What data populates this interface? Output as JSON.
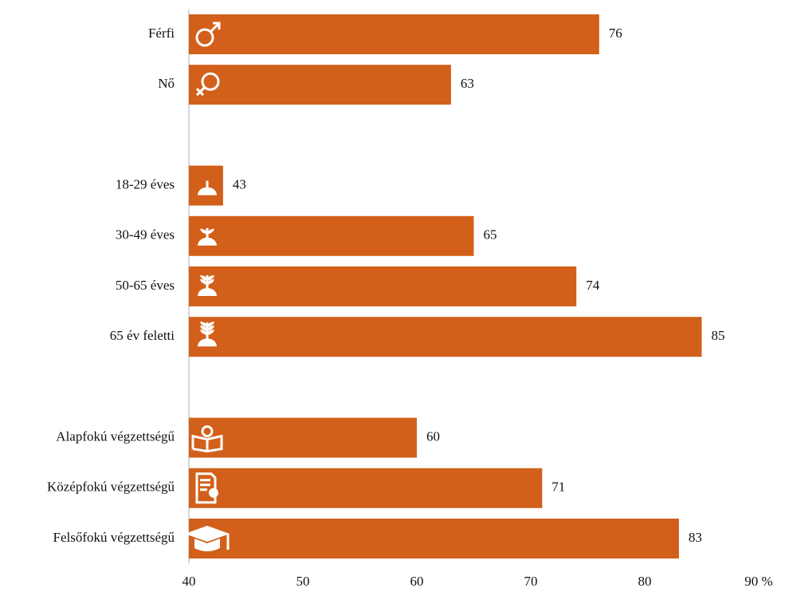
{
  "chart_data": {
    "type": "bar",
    "orientation": "horizontal",
    "categories": [
      "Férfi",
      "Nő",
      null,
      "18-29 éves",
      "30-49 éves",
      "50-65 éves",
      "65 év feletti",
      null,
      "Alapfokú végzettségű",
      "Középfokú végzettségű",
      "Felsőfokú végzettségű"
    ],
    "values": [
      76,
      63,
      null,
      43,
      65,
      74,
      85,
      null,
      60,
      71,
      83
    ],
    "color": "#d2601a",
    "xlim": [
      40,
      90
    ],
    "xticks": [
      40,
      50,
      60,
      70,
      80,
      {
        "value": 90,
        "label": "90 %"
      }
    ],
    "grid": false
  }
}
